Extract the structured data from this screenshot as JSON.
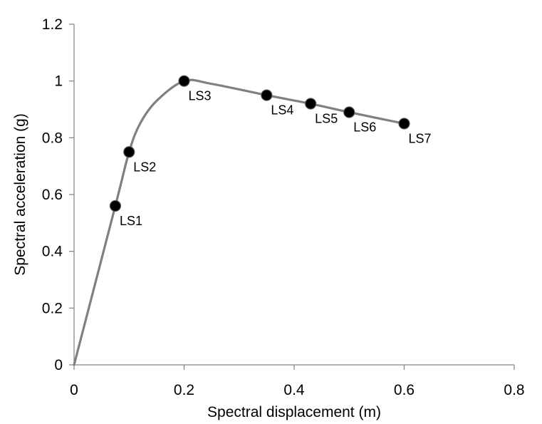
{
  "chart_data": {
    "type": "line",
    "xlabel": "Spectral displacement (m)",
    "ylabel": "Spectral acceleration (g)",
    "xlim": [
      0,
      0.8
    ],
    "ylim": [
      0,
      1.2
    ],
    "xticks": [
      0,
      0.2,
      0.4,
      0.6,
      0.8
    ],
    "yticks": [
      0,
      0.2,
      0.4,
      0.6,
      0.8,
      1,
      1.2
    ],
    "xtick_labels": [
      "0",
      "0.2",
      "0.4",
      "0.6",
      "0.8"
    ],
    "ytick_labels": [
      "0",
      "0.2",
      "0.4",
      "0.6",
      "0.8",
      "1",
      "1.2"
    ],
    "grid": false,
    "line_color": "#808080",
    "marker_color": "#000000",
    "curve": {
      "x": [
        0,
        0.075,
        0.1,
        0.12,
        0.15,
        0.2,
        0.25,
        0.35,
        0.43,
        0.5,
        0.6
      ],
      "y": [
        0,
        0.56,
        0.75,
        0.85,
        0.93,
        1.0,
        0.99,
        0.95,
        0.92,
        0.89,
        0.85
      ]
    },
    "points": [
      {
        "label": "LS1",
        "x": 0.075,
        "y": 0.56
      },
      {
        "label": "LS2",
        "x": 0.1,
        "y": 0.75
      },
      {
        "label": "LS3",
        "x": 0.2,
        "y": 1.0
      },
      {
        "label": "LS4",
        "x": 0.35,
        "y": 0.95
      },
      {
        "label": "LS5",
        "x": 0.43,
        "y": 0.92
      },
      {
        "label": "LS6",
        "x": 0.5,
        "y": 0.89
      },
      {
        "label": "LS7",
        "x": 0.6,
        "y": 0.85
      }
    ]
  }
}
